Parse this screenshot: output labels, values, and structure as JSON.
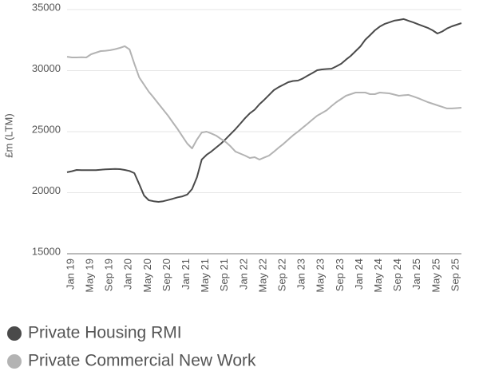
{
  "chart_data": {
    "type": "line",
    "y_label": "£m (LTM)",
    "categories": [
      "Jan 19",
      null,
      null,
      null,
      "May 19",
      null,
      null,
      null,
      "Sep 19",
      null,
      null,
      null,
      "Jan 20",
      null,
      null,
      null,
      "May 20",
      null,
      null,
      null,
      "Sep 20",
      null,
      null,
      null,
      "Jan 21",
      null,
      null,
      null,
      "May 21",
      null,
      null,
      null,
      "Sep 21",
      null,
      null,
      null,
      "Jan 22",
      null,
      null,
      null,
      "May 22",
      null,
      null,
      null,
      "Sep 22",
      null,
      null,
      null,
      "Jan 23",
      null,
      null,
      null,
      "May 23",
      null,
      null,
      null,
      "Sep 23",
      null,
      null,
      null,
      "Jan 24",
      null,
      null,
      null,
      "May 24",
      null,
      null,
      null,
      "Sep 24",
      null,
      null,
      null,
      "Jan 25",
      null,
      null,
      null,
      "May 25",
      null,
      null,
      null,
      "Sep 25",
      null,
      null
    ],
    "series": [
      {
        "name": "Private Housing RMI",
        "color": "#4a4a4a",
        "values": [
          21670,
          21760,
          21860,
          21850,
          21840,
          21840,
          21850,
          21880,
          21910,
          21930,
          21950,
          21930,
          21860,
          21780,
          21600,
          20700,
          19770,
          19380,
          19300,
          19250,
          19300,
          19400,
          19500,
          19620,
          19700,
          19850,
          20300,
          21270,
          22710,
          23100,
          23370,
          23700,
          24020,
          24400,
          24800,
          25200,
          25650,
          26100,
          26500,
          26800,
          27250,
          27610,
          28000,
          28400,
          28650,
          28850,
          29050,
          29150,
          29180,
          29350,
          29580,
          29800,
          30030,
          30100,
          30130,
          30160,
          30350,
          30560,
          30900,
          31210,
          31600,
          31990,
          32520,
          32900,
          33300,
          33600,
          33820,
          33950,
          34090,
          34150,
          34220,
          34080,
          33950,
          33800,
          33650,
          33500,
          33300,
          33040,
          33200,
          33450,
          33630,
          33760,
          33890
        ]
      },
      {
        "name": "Private Commercial New Work",
        "color": "#b3b3b3",
        "values": [
          31140,
          31080,
          31080,
          31100,
          31080,
          31340,
          31470,
          31600,
          31630,
          31670,
          31760,
          31860,
          32000,
          31730,
          30560,
          29440,
          28850,
          28270,
          27800,
          27290,
          26800,
          26310,
          25750,
          25200,
          24600,
          24020,
          23630,
          24350,
          24930,
          25000,
          24850,
          24670,
          24400,
          24150,
          23800,
          23370,
          23200,
          23040,
          22840,
          22910,
          22710,
          22880,
          23040,
          23350,
          23690,
          24000,
          24350,
          24700,
          25000,
          25330,
          25650,
          25980,
          26310,
          26530,
          26760,
          27100,
          27420,
          27680,
          27940,
          28070,
          28200,
          28200,
          28200,
          28070,
          28070,
          28200,
          28170,
          28140,
          28040,
          27940,
          27980,
          28010,
          27880,
          27740,
          27580,
          27420,
          27290,
          27160,
          27030,
          26900,
          26900,
          26930,
          26960
        ]
      }
    ],
    "ylim": [
      15000,
      35000
    ],
    "yticks": [
      15000,
      20000,
      25000,
      30000,
      35000
    ],
    "grid": true,
    "legend": "bottom"
  }
}
